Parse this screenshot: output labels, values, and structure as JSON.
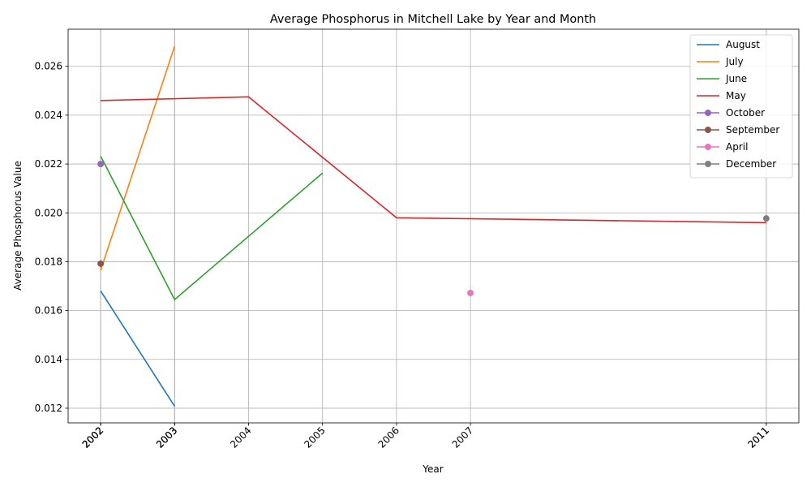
{
  "chart_data": {
    "type": "line",
    "title": "Average Phosphorus in Mitchell Lake by Year and Month",
    "xlabel": "Year",
    "ylabel": "Average Phosphorus Value",
    "xlim": [
      2001.56,
      2011.44
    ],
    "ylim": [
      0.0114,
      0.02752
    ],
    "x_ticks": [
      "2002",
      "2002",
      "2002",
      "2002",
      "2003",
      "2003",
      "2003",
      "2004",
      "2005",
      "2006",
      "2007",
      "2011",
      "2011"
    ],
    "x_tick_values": [
      2002,
      2002,
      2002,
      2002,
      2003,
      2003,
      2003,
      2004,
      2005,
      2006,
      2007,
      2011,
      2011
    ],
    "y_ticks": [
      0.012,
      0.014,
      0.016,
      0.018,
      0.02,
      0.022,
      0.024,
      0.026
    ],
    "y_tick_labels": [
      "0.012",
      "0.014",
      "0.016",
      "0.018",
      "0.020",
      "0.022",
      "0.024",
      "0.026"
    ],
    "grid": true,
    "legend_position": "top-right",
    "series": [
      {
        "name": "August",
        "color": "#1f77b4",
        "marker": false,
        "x": [
          2002,
          2003
        ],
        "y": [
          0.0168,
          0.01208
        ]
      },
      {
        "name": "July",
        "color": "#ff7f0e",
        "marker": false,
        "x": [
          2002,
          2003
        ],
        "y": [
          0.01765,
          0.02682
        ]
      },
      {
        "name": "June",
        "color": "#2ca02c",
        "marker": false,
        "x": [
          2002,
          2003,
          2005
        ],
        "y": [
          0.02232,
          0.01645,
          0.02163
        ]
      },
      {
        "name": "May",
        "color": "#d62728",
        "marker": false,
        "x": [
          2002,
          2004,
          2006,
          2011
        ],
        "y": [
          0.0246,
          0.02475,
          0.0198,
          0.0196
        ]
      },
      {
        "name": "October",
        "color": "#9467bd",
        "marker": true,
        "x": [
          2002
        ],
        "y": [
          0.022
        ]
      },
      {
        "name": "September",
        "color": "#8c564b",
        "marker": true,
        "x": [
          2002
        ],
        "y": [
          0.01792
        ]
      },
      {
        "name": "April",
        "color": "#e377c2",
        "marker": true,
        "x": [
          2007
        ],
        "y": [
          0.01672
        ]
      },
      {
        "name": "December",
        "color": "#7f7f7f",
        "marker": true,
        "x": [
          2011
        ],
        "y": [
          0.01977
        ]
      }
    ]
  }
}
